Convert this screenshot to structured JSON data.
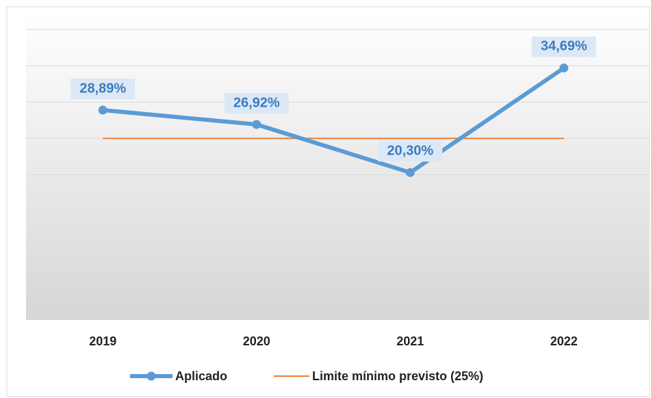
{
  "chart_data": {
    "type": "line",
    "categories": [
      "2019",
      "2020",
      "2021",
      "2022"
    ],
    "series": [
      {
        "name": "Aplicado",
        "color": "#5b9bd5",
        "values": [
          28.89,
          26.92,
          20.3,
          34.69
        ],
        "value_labels": [
          "28,89%",
          "26,92%",
          "20,30%",
          "34,69%"
        ]
      },
      {
        "name": "Limite mínimo previsto (25%)",
        "color": "#ed7d31",
        "values": [
          25,
          25,
          25,
          25
        ]
      }
    ],
    "ylim": [
      0,
      40
    ],
    "yticks": [
      20,
      25,
      30,
      35,
      40
    ],
    "grid": true,
    "legend": "bottom"
  }
}
